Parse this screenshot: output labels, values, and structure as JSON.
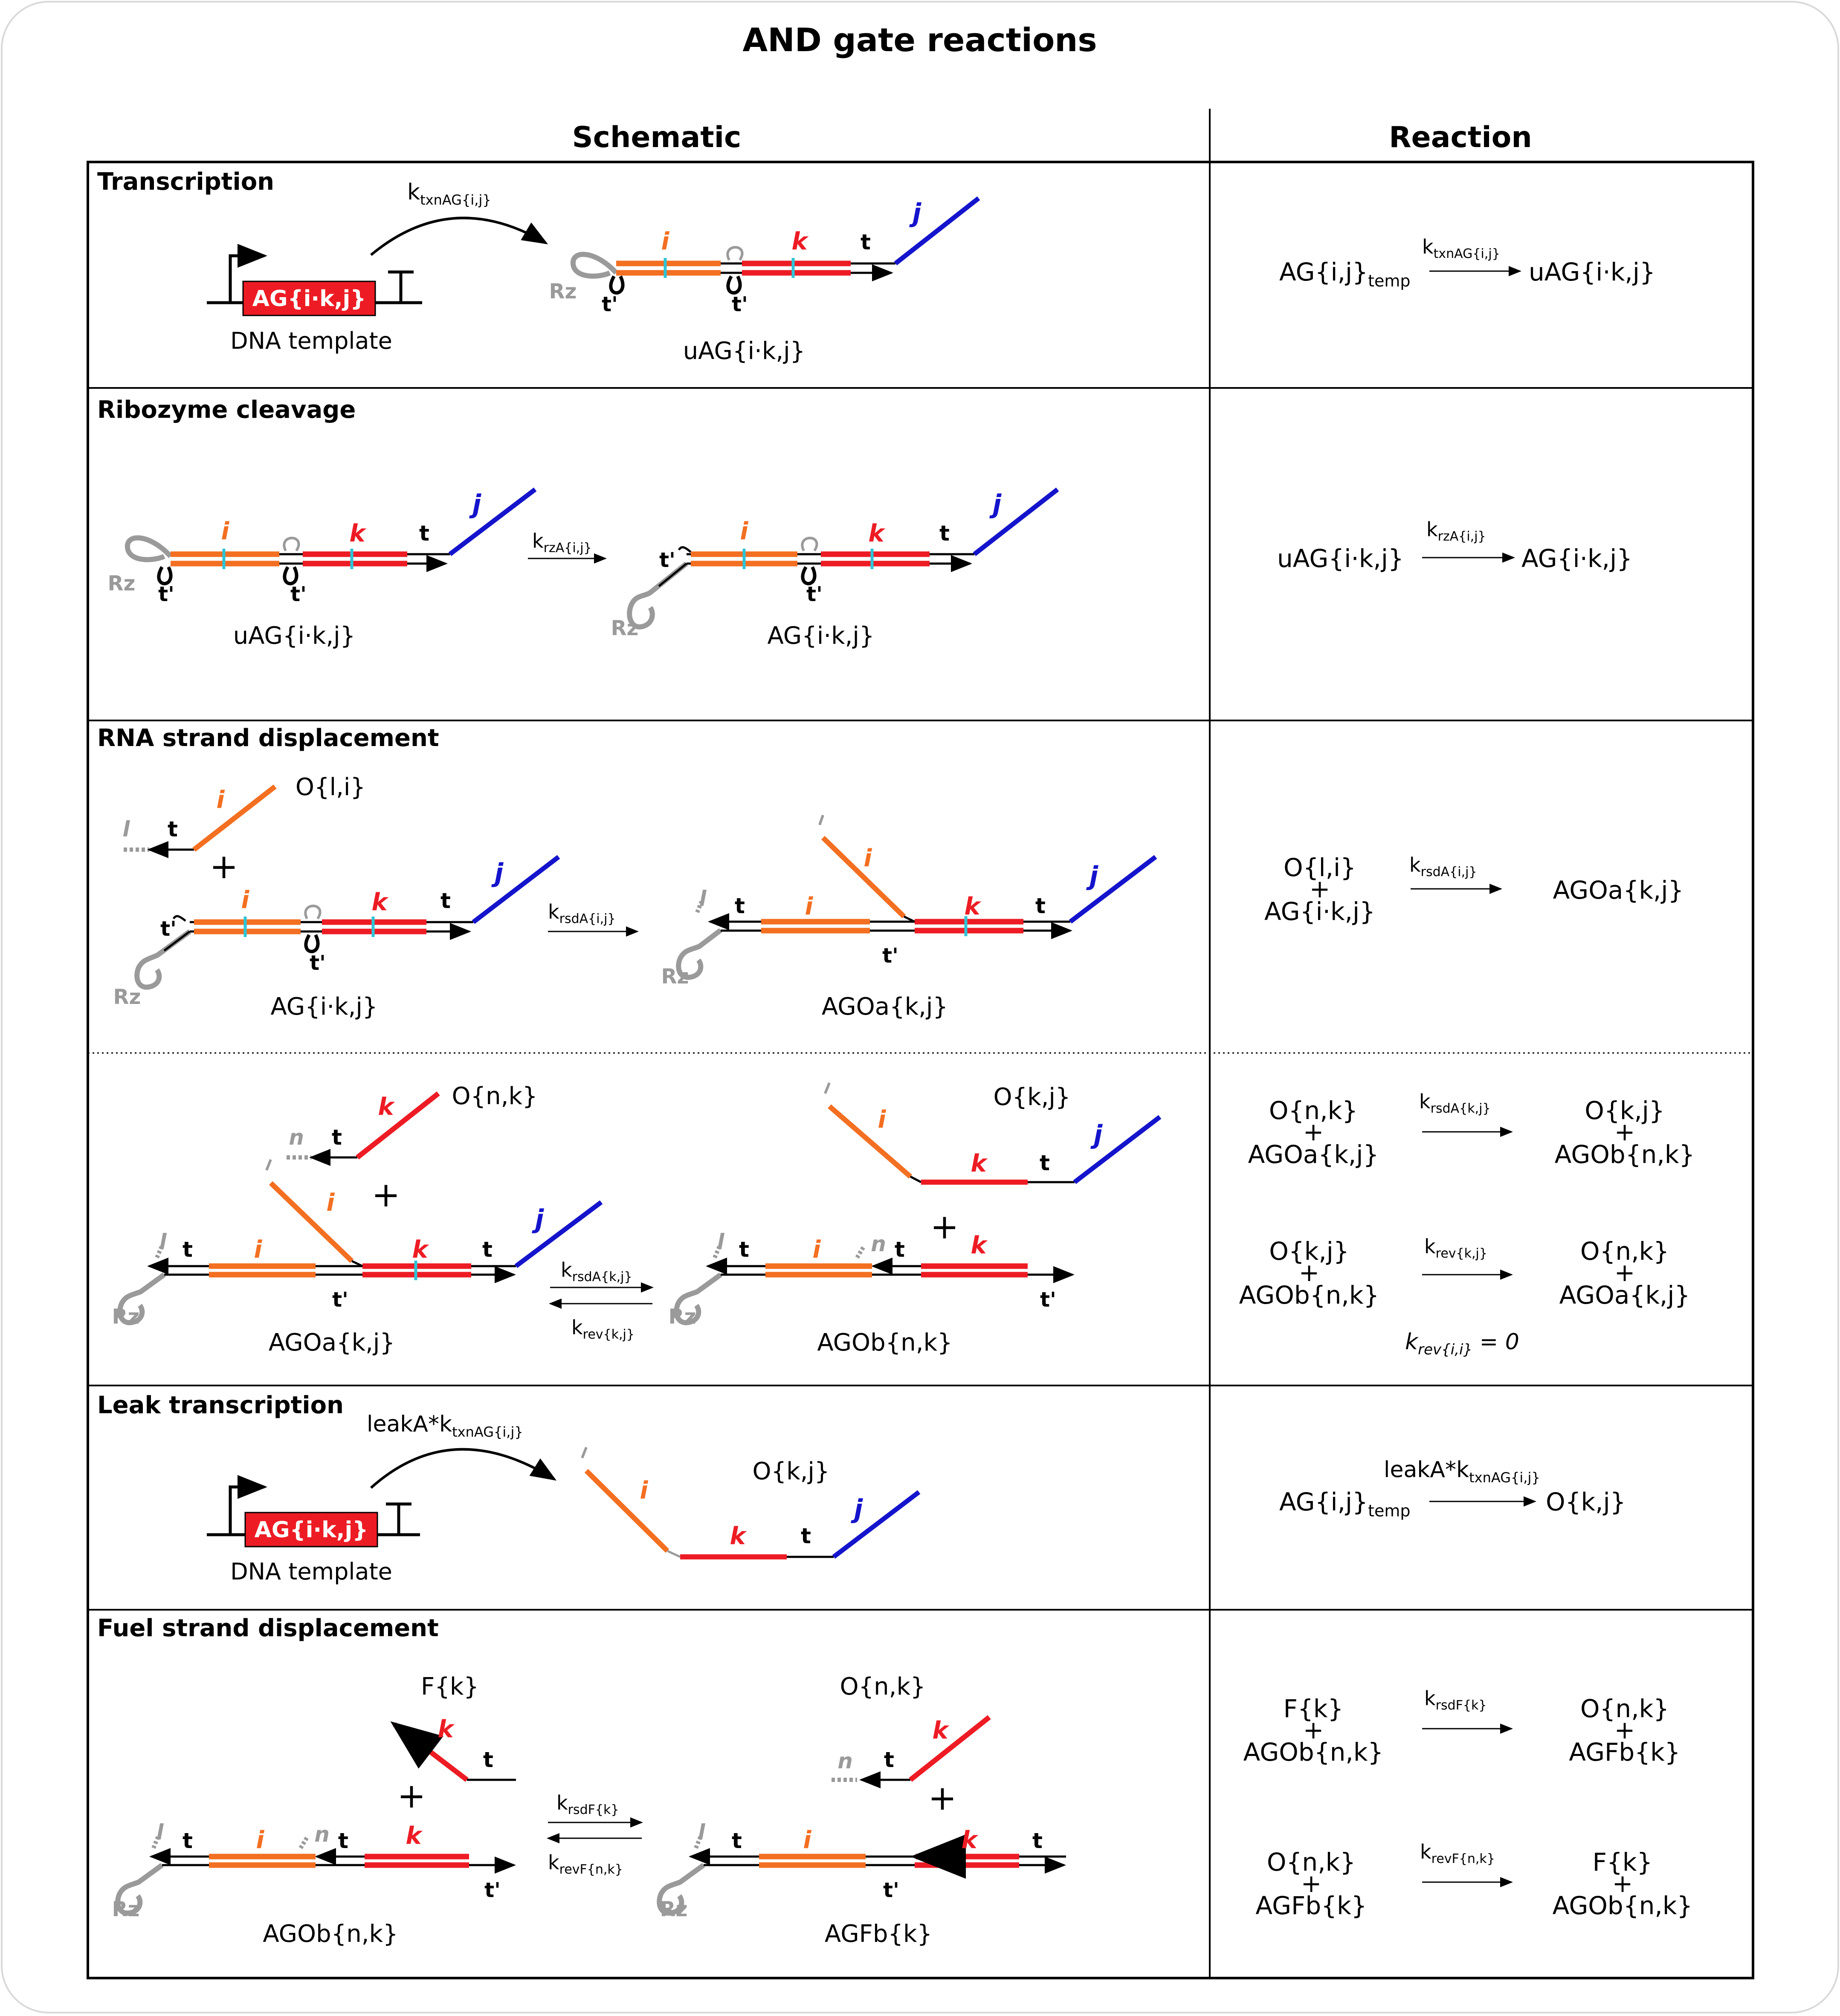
{
  "title": "AND gate reactions",
  "headers": {
    "schematic": "Schematic",
    "reaction": "Reaction"
  },
  "sections": {
    "transcription": "Transcription",
    "ribozyme": "Ribozyme cleavage",
    "rsd": "RNA strand displacement",
    "leak": "Leak transcription",
    "fuel": "Fuel strand displacement"
  },
  "labels": {
    "dna_template": "DNA template",
    "gene_box": "AG{i·k,j}",
    "uAG": "uAG{i·k,j}",
    "AG": "AG{i·k,j}",
    "AGOa": "AGOa{k,j}",
    "AGOb": "AGOb{n,k}",
    "AGFb": "AGFb{k}",
    "O_li": "O{l,i}",
    "O_nk": "O{n,k}",
    "O_kj": "O{k,j}",
    "F_k": "F{k}",
    "plus": "+",
    "Rz": "Rz",
    "t": "t",
    "tp": "t'",
    "dom_i": "i",
    "dom_j": "j",
    "dom_k": "k",
    "dom_l": "l",
    "dom_n": "n",
    "leakA": "leakA*"
  },
  "rates": {
    "k": "k",
    "txn_sub": "txnAG{i,j}",
    "rz_sub": "rzA{i,j}",
    "rsdA_ij_sub": "rsdA{i,j}",
    "rsdA_kj_sub": "rsdA{k,j}",
    "rev_kj_sub": "rev{k,j}",
    "rev_ii": "k",
    "rev_ii_sub": "rev{i,i}",
    "rev_ii_val": " = 0",
    "rsdF_sub": "rsdF{k}",
    "revF_sub": "revF{n,k}"
  },
  "reactions": {
    "temp_species": "AG{i,j}",
    "temp_sub": "temp"
  },
  "colors": {
    "orange": "#f36f21",
    "red": "#ed1c24",
    "blue": "#1414cc",
    "cyan": "#2ec4d6",
    "gray": "#9a9a9a",
    "black": "#000000",
    "border": "#d9d9d9"
  }
}
